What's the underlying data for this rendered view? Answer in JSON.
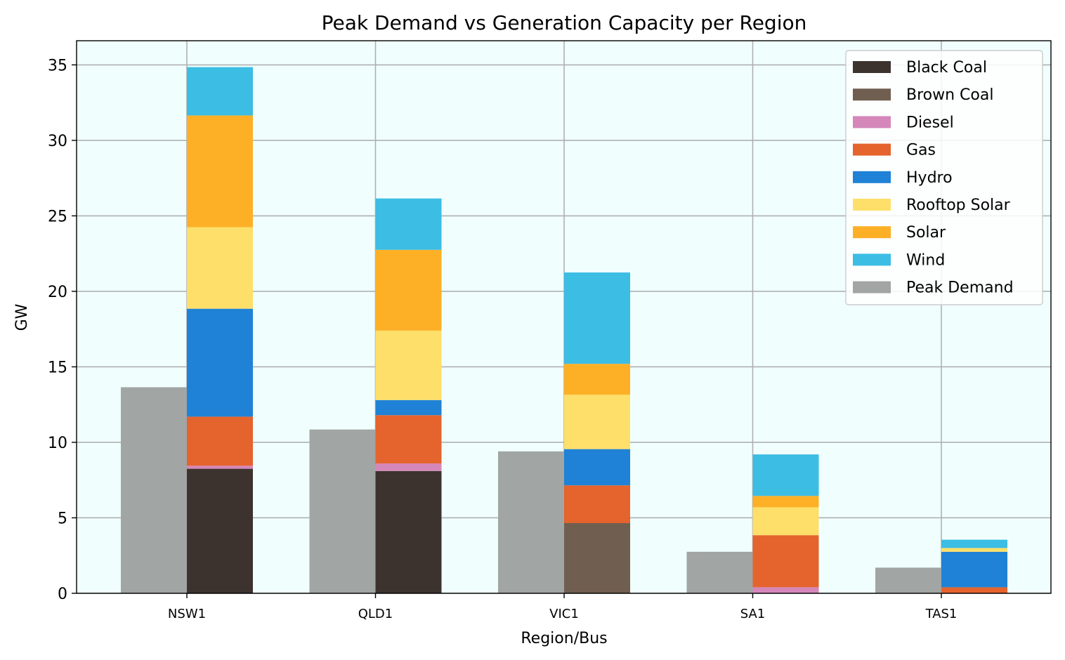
{
  "chart_data": {
    "type": "bar",
    "title": "Peak Demand vs Generation Capacity per Region",
    "xlabel": "Region/Bus",
    "ylabel": "GW",
    "ylim": [
      0,
      36.6
    ],
    "yticks": [
      0,
      5,
      10,
      15,
      20,
      25,
      30,
      35
    ],
    "grid": true,
    "legend_position": "top-right",
    "plot_background": "#f0fffe",
    "categories": [
      "NSW1",
      "QLD1",
      "VIC1",
      "SA1",
      "TAS1"
    ],
    "peak_demand": {
      "name": "Peak Demand",
      "color": "#a1a5a4",
      "values": [
        13.65,
        10.85,
        9.4,
        2.75,
        1.7
      ]
    },
    "series": [
      {
        "name": "Black Coal",
        "color": "#3d332e",
        "values": [
          8.25,
          8.1,
          0,
          0,
          0
        ]
      },
      {
        "name": "Brown Coal",
        "color": "#705e50",
        "values": [
          0,
          0,
          4.65,
          0,
          0
        ]
      },
      {
        "name": "Diesel",
        "color": "#d587ba",
        "values": [
          0.2,
          0.5,
          0,
          0.4,
          0
        ]
      },
      {
        "name": "Gas",
        "color": "#e5632d",
        "values": [
          3.25,
          3.2,
          2.5,
          3.45,
          0.4
        ]
      },
      {
        "name": "Hydro",
        "color": "#1f82d6",
        "values": [
          7.15,
          1.0,
          2.4,
          0,
          2.35
        ]
      },
      {
        "name": "Rooftop Solar",
        "color": "#fedf6a",
        "values": [
          5.4,
          4.6,
          3.6,
          1.85,
          0.25
        ]
      },
      {
        "name": "Solar",
        "color": "#fdb026",
        "values": [
          7.4,
          5.35,
          2.05,
          0.75,
          0
        ]
      },
      {
        "name": "Wind",
        "color": "#3cbde4",
        "values": [
          3.2,
          3.4,
          6.05,
          2.75,
          0.55
        ]
      }
    ]
  }
}
